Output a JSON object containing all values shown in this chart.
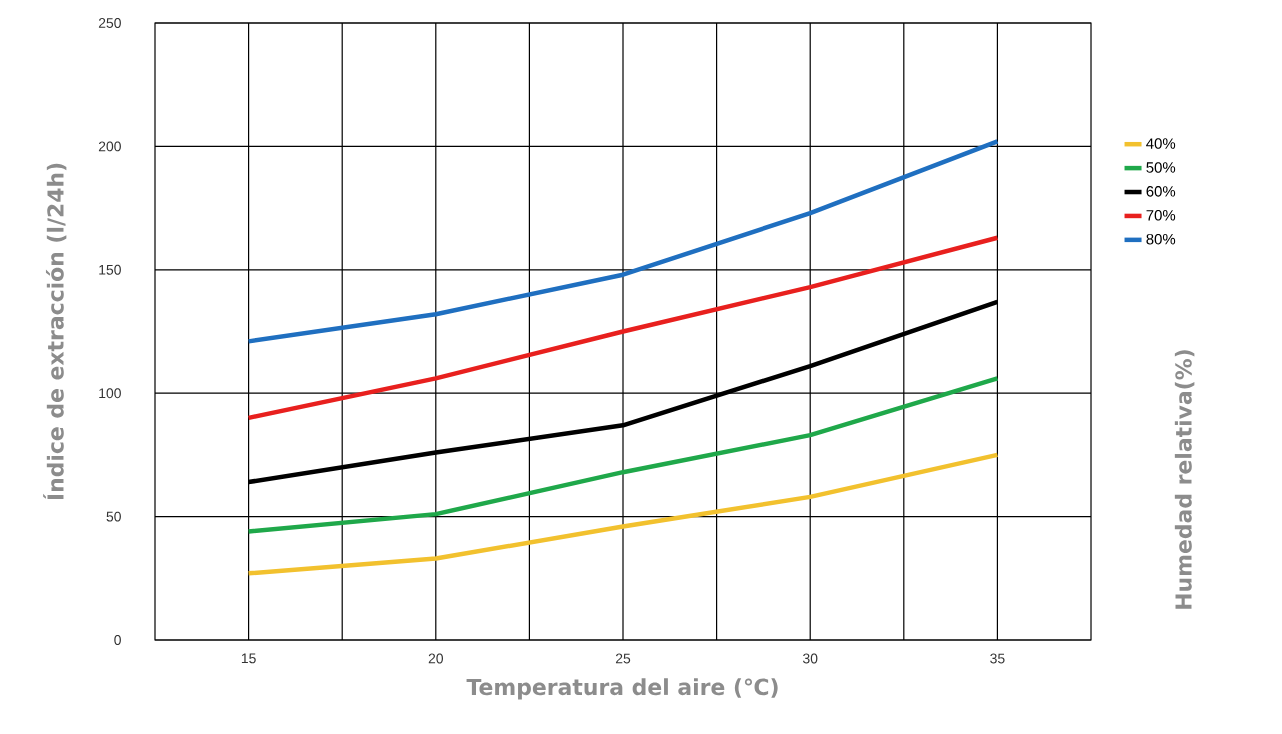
{
  "chart_data": {
    "type": "line",
    "xlabel": "Temperatura del aire (℃)",
    "ylabel": "Índice de extracción (l/24h)",
    "legend_title": "Humedad relativa(%)",
    "x": [
      15,
      20,
      25,
      30,
      35
    ],
    "series": [
      {
        "name": "40%",
        "color": "#f2c12e",
        "values": [
          27,
          33,
          46,
          58,
          75
        ]
      },
      {
        "name": "50%",
        "color": "#1fa84a",
        "values": [
          44,
          51,
          68,
          83,
          106
        ]
      },
      {
        "name": "60%",
        "color": "#000000",
        "values": [
          64,
          76,
          87,
          111,
          137
        ]
      },
      {
        "name": "70%",
        "color": "#e8201e",
        "values": [
          90,
          106,
          125,
          143,
          163
        ]
      },
      {
        "name": "80%",
        "color": "#1f6fc0",
        "values": [
          121,
          132,
          148,
          173,
          202
        ]
      }
    ],
    "xlim": [
      12.5,
      37.5
    ],
    "xticks": [
      15,
      {
        "value": 17.5,
        "label": null
      },
      20,
      {
        "value": 22.5,
        "label": null
      },
      25,
      {
        "value": 27.5,
        "label": null
      },
      30,
      {
        "value": 32.5,
        "label": null
      },
      35
    ],
    "ylim": [
      0,
      250
    ],
    "yticks": [
      0,
      50,
      100,
      150,
      200,
      250
    ],
    "grid": true,
    "legend": "right",
    "marker": "none",
    "line_style": "solid"
  }
}
